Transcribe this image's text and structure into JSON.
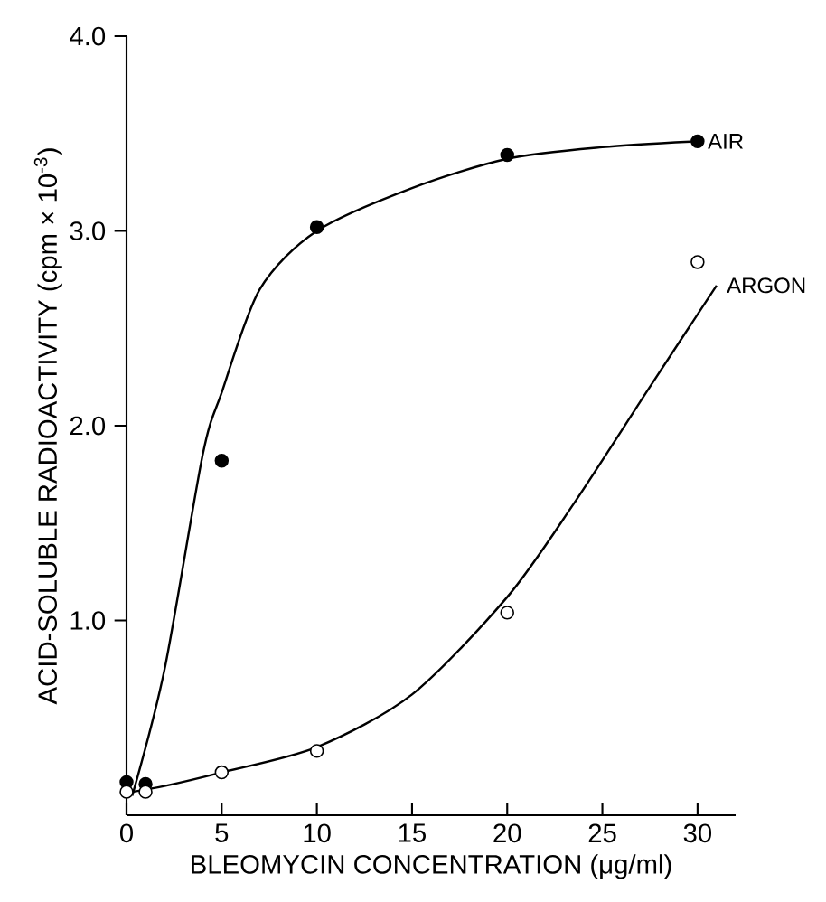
{
  "chart_data": {
    "type": "scatter",
    "xlabel": "BLEOMYCIN CONCENTRATION (μg/ml)",
    "ylabel": "ACID-SOLUBLE RADIOACTIVITY (cpm × 10$^{-3}$)",
    "xlim": [
      0,
      32
    ],
    "ylim": [
      0,
      4.0
    ],
    "xticks": [
      0,
      5,
      10,
      15,
      20,
      25,
      30
    ],
    "yticks": [
      {
        "value": 1,
        "label": "1.0"
      },
      {
        "value": 2,
        "label": "2.0"
      },
      {
        "value": 3,
        "label": "3.0"
      },
      {
        "value": 4,
        "label": "4.0"
      }
    ],
    "series": [
      {
        "marker": "circle",
        "color": "#000000",
        "x": [
          0,
          1,
          5,
          10,
          20,
          30
        ],
        "values": [
          0.17,
          0.16,
          1.82,
          3.02,
          3.39,
          3.46
        ]
      },
      {
        "marker": "circle",
        "color": "#ffffff",
        "x": [
          0,
          1,
          5,
          10,
          20,
          30
        ],
        "values": [
          0.12,
          0.12,
          0.22,
          0.33,
          1.04,
          2.84
        ]
      },
      {
        "type": "line",
        "name": "AIR",
        "marker": "none",
        "color": "#000000",
        "x": [
          0.3,
          2,
          4,
          5,
          7,
          10,
          15,
          20,
          25,
          30
        ],
        "values": [
          0.1,
          0.75,
          1.85,
          2.17,
          2.7,
          3.0,
          3.22,
          3.37,
          3.43,
          3.46
        ]
      },
      {
        "type": "line",
        "name": "ARGON",
        "marker": "none",
        "color": "#000000",
        "x": [
          0.3,
          2,
          5,
          10,
          15,
          20,
          23.5,
          27.5,
          31
        ],
        "values": [
          0.12,
          0.15,
          0.22,
          0.35,
          0.62,
          1.12,
          1.6,
          2.2,
          2.72
        ]
      }
    ]
  }
}
